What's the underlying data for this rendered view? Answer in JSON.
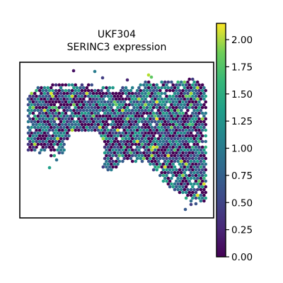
{
  "chart_data": {
    "type": "scatter",
    "subtype": "spatial-hexbin",
    "title_lines": [
      "UKF304",
      "SERINC3 expression"
    ],
    "colorbar": {
      "colormap": "viridis",
      "range": [
        0.0,
        2.15
      ],
      "ticks": [
        0.0,
        0.25,
        0.5,
        0.75,
        1.0,
        1.25,
        1.5,
        1.75,
        2.0
      ],
      "tick_labels": [
        "0.00",
        "0.25",
        "0.50",
        "0.75",
        "1.00",
        "1.25",
        "1.50",
        "1.75",
        "2.00"
      ]
    },
    "axes_visible": false,
    "grid": false,
    "colors": {
      "viridis_low": "#440154",
      "viridis_mid": "#21918c",
      "viridis_high": "#fde725",
      "frame": "#000000"
    }
  }
}
